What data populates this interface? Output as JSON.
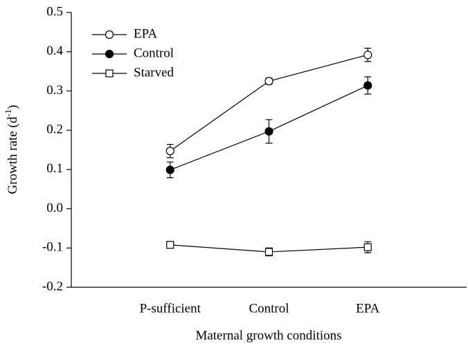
{
  "chart_data": {
    "type": "line",
    "xlabel": "Maternal growth conditions",
    "ylabel": {
      "text": "Growth rate (d",
      "superscript": "-1",
      "close": ")"
    },
    "categories": [
      "P-sufficient",
      "Control",
      "EPA"
    ],
    "ylim": [
      -0.2,
      0.5
    ],
    "yticks": [
      0.5,
      0.4,
      0.3,
      0.2,
      0.1,
      {
        "value": 0,
        "label": "0.0"
      },
      -0.1,
      -0.2
    ],
    "legend": "upper left",
    "series": [
      {
        "name": "EPA",
        "color": "#000000",
        "marker": "circle-open",
        "values": [
          0.147,
          0.325,
          0.392
        ],
        "errors": [
          0.017,
          0.008,
          0.017
        ]
      },
      {
        "name": "Control",
        "color": "#000000",
        "marker": "circle-filled",
        "values": [
          0.099,
          0.197,
          0.314
        ],
        "errors": [
          0.02,
          0.03,
          0.022
        ]
      },
      {
        "name": "Starved",
        "color": "#000000",
        "marker": "square-open",
        "values": [
          -0.092,
          -0.11,
          -0.098
        ],
        "errors": [
          0.003,
          0.01,
          0.014
        ]
      }
    ]
  }
}
